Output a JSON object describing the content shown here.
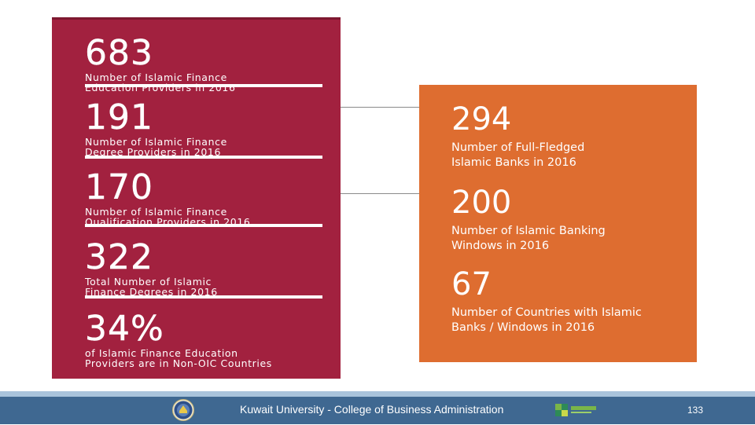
{
  "left_panel": {
    "stats": [
      {
        "number": "683",
        "description": "Number of Islamic Finance\nEducation Providers in 2016"
      },
      {
        "number": "191",
        "description": "Number of Islamic Finance\nDegree Providers in 2016"
      },
      {
        "number": "170",
        "description": "Number of Islamic Finance\nQualification Providers in 2016"
      },
      {
        "number": "322",
        "description": "Total Number of Islamic\nFinance Degrees in 2016"
      },
      {
        "number": "34%",
        "description": "of Islamic Finance Education\nProviders are in Non-OIC Countries"
      }
    ],
    "color": "#a2213f"
  },
  "right_panel": {
    "stats": [
      {
        "number": "294",
        "description": "Number of Full-Fledged\nIslamic Banks in 2016"
      },
      {
        "number": "200",
        "description": "Number of Islamic Banking\nWindows in 2016"
      },
      {
        "number": "67",
        "description": "Number of Countries with Islamic\nBanks / Windows in 2016"
      }
    ],
    "color": "#de6d30"
  },
  "footer": {
    "university": "Kuwait University - College of Business Administration",
    "page_number": "133",
    "color": "#3f6891",
    "icons": [
      "university-seal-icon",
      "partner-logo-icon"
    ]
  }
}
